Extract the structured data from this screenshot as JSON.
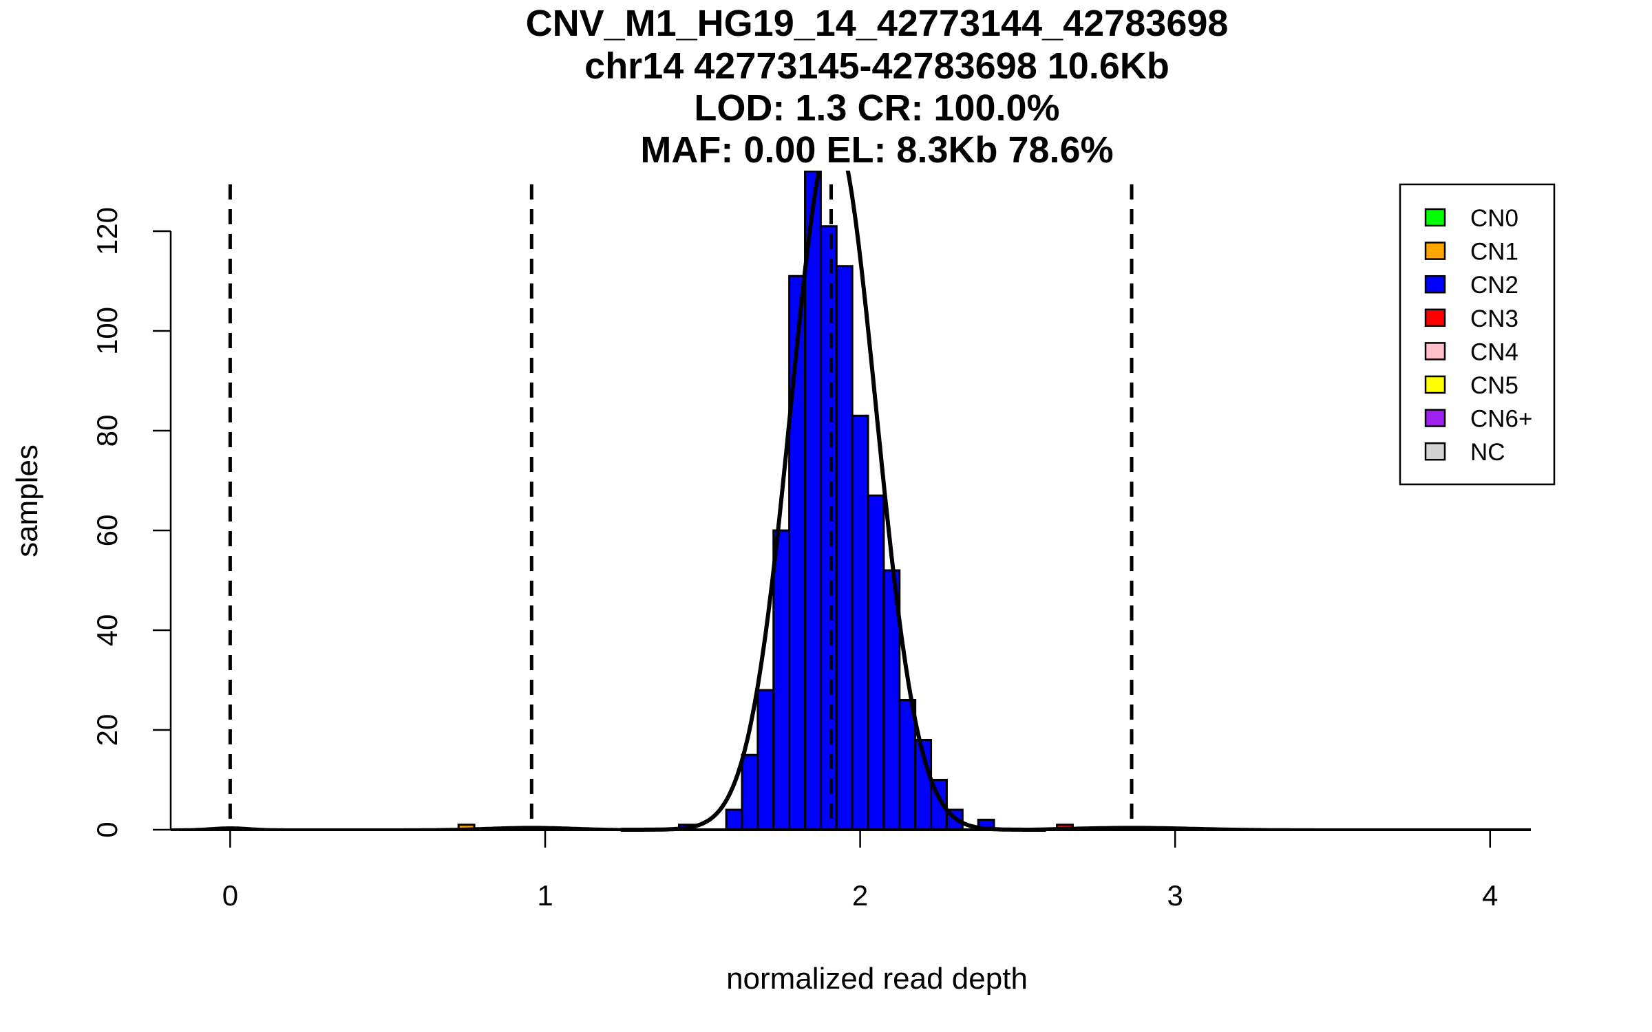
{
  "chart_data": {
    "type": "bar",
    "title_lines": [
      "CNV_M1_HG19_14_42773144_42783698",
      "chr14 42773145-42783698 10.6Kb",
      "LOD: 1.3 CR: 100.0%",
      "MAF: 0.00 EL: 8.3Kb 78.6%"
    ],
    "xlabel": "normalized read depth",
    "ylabel": "samples",
    "xlim": [
      -0.18,
      4.12
    ],
    "ylim": [
      0,
      129
    ],
    "xticks": [
      0,
      1,
      2,
      3,
      4
    ],
    "yticks": [
      0,
      20,
      40,
      60,
      80,
      100,
      120
    ],
    "bin_width": 0.05,
    "bars": [
      {
        "x": 0.725,
        "count": 1,
        "cn": "CN1"
      },
      {
        "x": 1.425,
        "count": 1,
        "cn": "CN2"
      },
      {
        "x": 1.575,
        "count": 4,
        "cn": "CN2"
      },
      {
        "x": 1.625,
        "count": 15,
        "cn": "CN2"
      },
      {
        "x": 1.675,
        "count": 28,
        "cn": "CN2"
      },
      {
        "x": 1.725,
        "count": 60,
        "cn": "CN2"
      },
      {
        "x": 1.775,
        "count": 111,
        "cn": "CN2"
      },
      {
        "x": 1.825,
        "count": 132,
        "cn": "CN2"
      },
      {
        "x": 1.875,
        "count": 121,
        "cn": "CN2"
      },
      {
        "x": 1.925,
        "count": 113,
        "cn": "CN2"
      },
      {
        "x": 1.975,
        "count": 83,
        "cn": "CN2"
      },
      {
        "x": 2.025,
        "count": 67,
        "cn": "CN2"
      },
      {
        "x": 2.075,
        "count": 52,
        "cn": "CN2"
      },
      {
        "x": 2.125,
        "count": 26,
        "cn": "CN2"
      },
      {
        "x": 2.175,
        "count": 18,
        "cn": "CN2"
      },
      {
        "x": 2.225,
        "count": 10,
        "cn": "CN2"
      },
      {
        "x": 2.275,
        "count": 4,
        "cn": "CN2"
      },
      {
        "x": 2.375,
        "count": 2,
        "cn": "CN2"
      },
      {
        "x": 2.625,
        "count": 1,
        "cn": "CN3"
      }
    ],
    "fit_curve": {
      "mean": 1.915,
      "sd": 0.135,
      "peak": 140
    },
    "minor_curves": [
      {
        "mean": 0.0,
        "sd": 0.06,
        "peak": 0.4
      },
      {
        "mean": 0.957,
        "sd": 0.14,
        "peak": 0.5
      },
      {
        "mean": 2.862,
        "sd": 0.2,
        "peak": 0.5
      }
    ],
    "dashed_lines_x": [
      0,
      0.957,
      1.908,
      2.862
    ],
    "legend": {
      "placement": "top-right",
      "entries": [
        {
          "label": "CN0",
          "color": "#00ff00"
        },
        {
          "label": "CN1",
          "color": "#ffa500"
        },
        {
          "label": "CN2",
          "color": "#0000ff"
        },
        {
          "label": "CN3",
          "color": "#ff0000"
        },
        {
          "label": "CN4",
          "color": "#ffc0cb"
        },
        {
          "label": "CN5",
          "color": "#ffff00"
        },
        {
          "label": "CN6+",
          "color": "#a020f0"
        },
        {
          "label": "NC",
          "color": "#d3d3d3"
        }
      ]
    }
  }
}
